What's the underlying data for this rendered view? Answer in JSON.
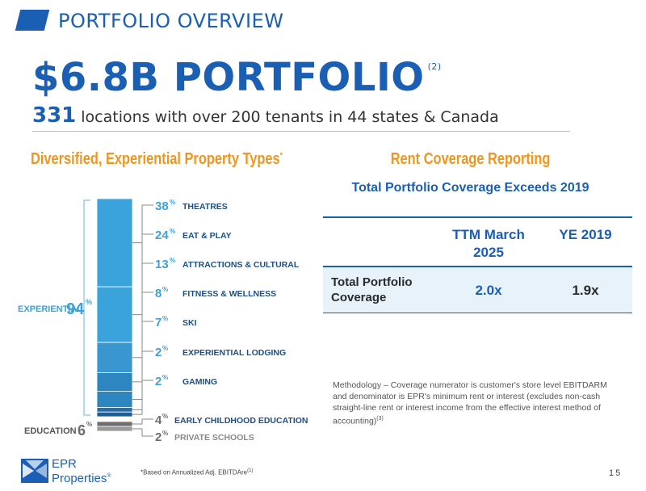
{
  "header": {
    "title": "PORTFOLIO OVERVIEW"
  },
  "headline": {
    "title": "$6.8B PORTFOLIO",
    "note": "(2)"
  },
  "subline": {
    "number": "331",
    "text": "locations with over 200 tenants in 44 states & Canada"
  },
  "left_section": {
    "title": "Diversified, Experiential Property Types",
    "marker": "*"
  },
  "right_section": {
    "title": "Rent Coverage Reporting",
    "subtitle": "Total Portfolio Coverage Exceeds 2019",
    "table": {
      "headers": [
        "TTM March 2025",
        "YE 2019"
      ],
      "row_label": "Total Portfolio Coverage",
      "values": [
        "2.0x",
        "1.9x"
      ]
    },
    "methodology": "Methodology – Coverage numerator is customer's store level EBITDARM and denominator is EPR's minimum rent or interest (excludes non-cash straight-line rent or interest income from the effective interest method of accounting)",
    "methodology_note": "(3)"
  },
  "chart_data": {
    "type": "bar",
    "stacked": true,
    "groups": [
      {
        "label": "EXPERIENTIAL",
        "value": 94,
        "unit": "%"
      },
      {
        "label": "EDUCATION",
        "value": 6,
        "unit": "%"
      }
    ],
    "segments": [
      {
        "label": "THEATRES",
        "value": 38,
        "group": "EXPERIENTIAL",
        "color": "#3aa3dc"
      },
      {
        "label": "EAT & PLAY",
        "value": 24,
        "group": "EXPERIENTIAL",
        "color": "#3aa3dc"
      },
      {
        "label": "ATTRACTIONS & CULTURAL",
        "value": 13,
        "group": "EXPERIENTIAL",
        "color": "#3a96d0"
      },
      {
        "label": "FITNESS & WELLNESS",
        "value": 8,
        "group": "EXPERIENTIAL",
        "color": "#2e86c1"
      },
      {
        "label": "SKI",
        "value": 7,
        "group": "EXPERIENTIAL",
        "color": "#2e86c1"
      },
      {
        "label": "EXPERIENTIAL LODGING",
        "value": 2,
        "group": "EXPERIENTIAL",
        "color": "#2470ad"
      },
      {
        "label": "GAMING",
        "value": 2,
        "group": "EXPERIENTIAL",
        "color": "#1d5d98"
      },
      {
        "label": "EARLY CHILDHOOD EDUCATION",
        "value": 4,
        "group": "EDUCATION",
        "color": "#6d6d6d"
      },
      {
        "label": "PRIVATE SCHOOLS",
        "value": 2,
        "group": "EDUCATION",
        "color": "#9a9a9a"
      }
    ],
    "unit": "%",
    "colors": {
      "experiential_text": "#3aa3dc",
      "label_text": "#1d4f87",
      "education_text": "#6d6d6d"
    }
  },
  "footer": {
    "logo_line1": "EPR",
    "logo_line2": "Properties",
    "logo_mark": "®",
    "footnote": "*Based on Annualized Adj. EBITDAre",
    "footnote_note": "(1)",
    "page_number": "15"
  }
}
